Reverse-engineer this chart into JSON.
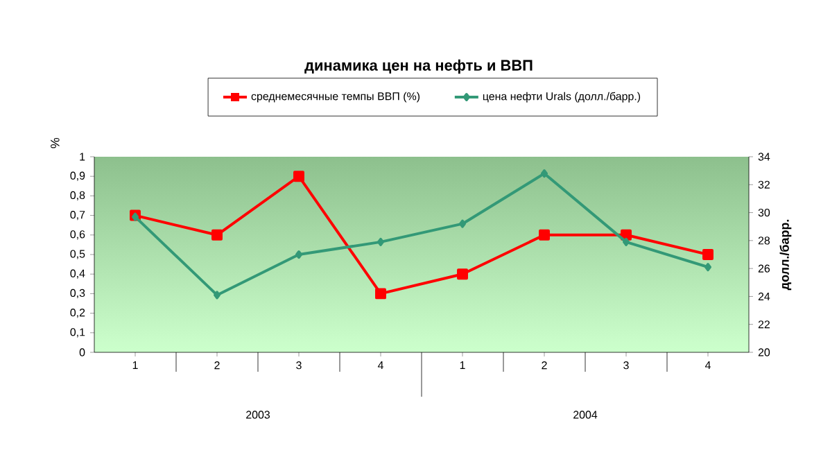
{
  "chart_data": {
    "type": "line",
    "title": "динамика цен на нефть и ВВП",
    "categories": [
      "1",
      "2",
      "3",
      "4",
      "1",
      "2",
      "3",
      "4"
    ],
    "annotations": [
      "2003",
      "2004"
    ],
    "ylabel": "%",
    "y2label": "долл./барр.",
    "ylim": [
      0,
      1
    ],
    "yticks": [
      0,
      {
        "value": 0.1,
        "label": "0,1"
      },
      {
        "value": 0.2,
        "label": "0,2"
      },
      {
        "value": 0.3,
        "label": "0,3"
      },
      {
        "value": 0.4,
        "label": "0,4"
      },
      {
        "value": 0.5,
        "label": "0,5"
      },
      {
        "value": 0.6,
        "label": "0,6"
      },
      {
        "value": 0.7,
        "label": "0,7"
      },
      {
        "value": 0.8,
        "label": "0,8"
      },
      {
        "value": 0.9,
        "label": "0,9"
      },
      1
    ],
    "y2lim": [
      20,
      34
    ],
    "y2ticks": [
      20,
      22,
      24,
      26,
      28,
      30,
      32,
      34
    ],
    "legend": "top",
    "grid": false,
    "series": [
      {
        "name": "среднемесячные темпы ВВП (%)",
        "color": "#ff0000",
        "marker": "square",
        "values": [
          0.7,
          0.6,
          0.9,
          0.3,
          0.4,
          0.6,
          0.6,
          0.5
        ]
      },
      {
        "name": "цена нефти Urals (долл./барр.)",
        "color": "#339977",
        "marker": "diamond",
        "axis": "y2",
        "values": [
          29.7,
          24.1,
          27.0,
          27.9,
          29.2,
          32.8,
          27.9,
          26.1
        ]
      }
    ]
  }
}
